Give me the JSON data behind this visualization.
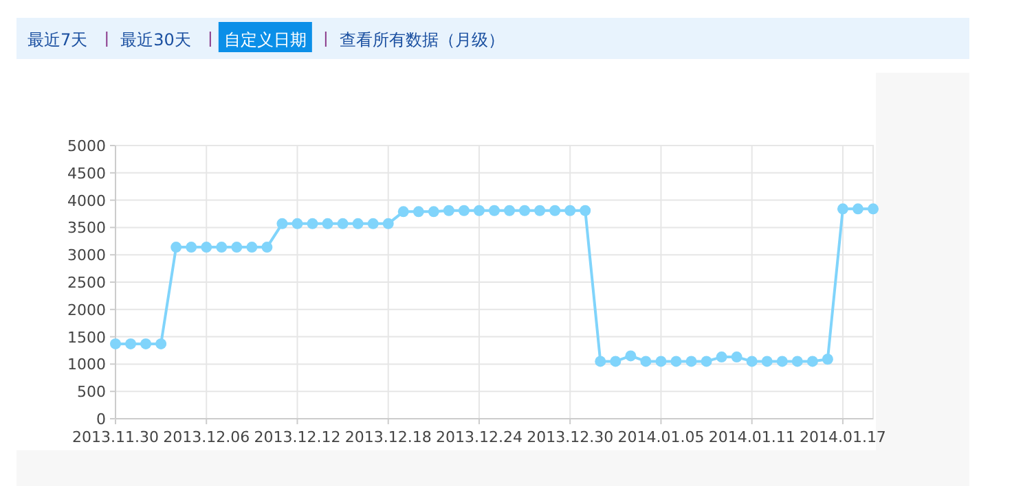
{
  "chart_data": {
    "type": "line",
    "annotations": [
      "最近7天",
      "最近30天",
      "自定义日期",
      "查看所有数据（月级）"
    ],
    "x": [
      "2013-11-30",
      "2013-12-01",
      "2013-12-02",
      "2013-12-03",
      "2013-12-04",
      "2013-12-05",
      "2013-12-06",
      "2013-12-07",
      "2013-12-08",
      "2013-12-09",
      "2013-12-10",
      "2013-12-11",
      "2013-12-12",
      "2013-12-13",
      "2013-12-14",
      "2013-12-15",
      "2013-12-16",
      "2013-12-17",
      "2013-12-18",
      "2013-12-19",
      "2013-12-20",
      "2013-12-21",
      "2013-12-22",
      "2013-12-23",
      "2013-12-24",
      "2013-12-25",
      "2013-12-26",
      "2013-12-27",
      "2013-12-28",
      "2013-12-29",
      "2013-12-30",
      "2013-12-31",
      "2014-01-01",
      "2014-01-02",
      "2014-01-03",
      "2014-01-04",
      "2014-01-05",
      "2014-01-06",
      "2014-01-07",
      "2014-01-08",
      "2014-01-09",
      "2014-01-10",
      "2014-01-11",
      "2014-01-12",
      "2014-01-13",
      "2014-01-14",
      "2014-01-15",
      "2014-01-16",
      "2014-01-17",
      "2014-01-18",
      "2014-01-19"
    ],
    "series": [
      {
        "color": "#80d4fb",
        "values": [
          1370,
          1370,
          1370,
          1370,
          3140,
          3140,
          3140,
          3140,
          3140,
          3140,
          3140,
          3570,
          3570,
          3570,
          3570,
          3570,
          3570,
          3570,
          3570,
          3790,
          3790,
          3790,
          3810,
          3810,
          3810,
          3810,
          3810,
          3810,
          3810,
          3810,
          3810,
          3810,
          1050,
          1050,
          1150,
          1050,
          1050,
          1050,
          1050,
          1050,
          1130,
          1130,
          1050,
          1050,
          1050,
          1050,
          1050,
          1090,
          3840,
          3840,
          3840
        ]
      }
    ],
    "xlim": [
      "2013-11-30",
      "2014-01-19"
    ],
    "xticks": [
      {
        "value": "2013-11-30",
        "label": "2013.11.30"
      },
      {
        "value": "2013-12-06",
        "label": "2013.12.06"
      },
      {
        "value": "2013-12-12",
        "label": "2013.12.12"
      },
      {
        "value": "2013-12-18",
        "label": "2013.12.18"
      },
      {
        "value": "2013-12-24",
        "label": "2013.12.24"
      },
      {
        "value": "2013-12-30",
        "label": "2013.12.30"
      },
      {
        "value": "2014-01-05",
        "label": "2014.01.05"
      },
      {
        "value": "2014-01-11",
        "label": "2014.01.11"
      },
      {
        "value": "2014-01-17",
        "label": "2014.01.17"
      }
    ],
    "ylim": [
      0,
      5000
    ],
    "yticks": [
      0,
      500,
      1000,
      1500,
      2000,
      2500,
      3000,
      3500,
      4000,
      4500,
      5000
    ],
    "grid": true,
    "marker": "circle",
    "line_style": "solid"
  }
}
